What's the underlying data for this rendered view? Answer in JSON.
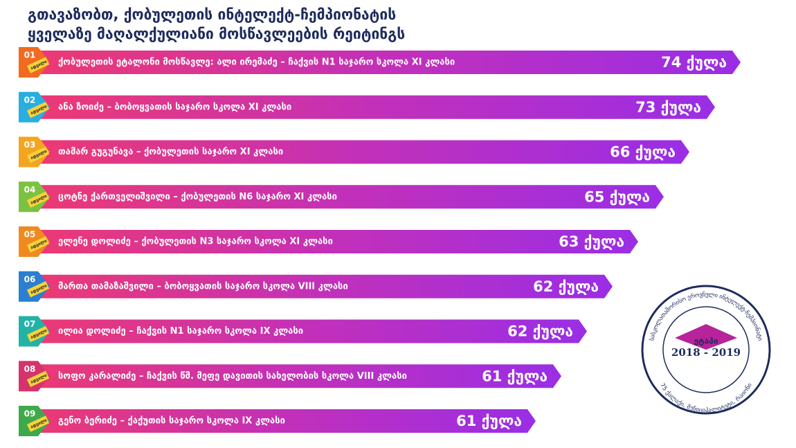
{
  "header": {
    "title_lines": [
      "გთავაზობთ, ქობულეთის ინტელექტ-ჩემპიონატის",
      "ყველაზე მაღალქულიანი მოსწავლეების რეიტინგს"
    ]
  },
  "place_word": "ადგილი",
  "rows": [
    {
      "rank": "01",
      "text": "ქობულეთის ეტალონი მოსწავლე: ალი ირემაძე – ჩაქვის N1 საჯარო სკოლა XI კლასი",
      "score": "74 ქულა"
    },
    {
      "rank": "02",
      "text": "ანა ზოიძე – ბობოყვათის საჯარო სკოლა XI კლასი",
      "score": "73 ქულა"
    },
    {
      "rank": "03",
      "text": "თამარ გუგუნავა – ქობულეთის საჯარო XI კლასი",
      "score": "66 ქულა"
    },
    {
      "rank": "04",
      "text": "ცოტნე ქართველიშვილი – ქობულეთის N6 საჯარო XI კლასი",
      "score": "65 ქულა"
    },
    {
      "rank": "05",
      "text": "ელენე დოლიძე – ქობულეთის N3 საჯარო სკოლა XI კლასი",
      "score": "63 ქულა"
    },
    {
      "rank": "06",
      "text": "მართა თამაზაშვილი – ბობოყვათის საჯარო სკოლა VIII კლასი",
      "score": "62 ქულა"
    },
    {
      "rank": "07",
      "text": "ილია დოლიძე – ჩაქვის N1 საჯარო სკოლა IX კლასი",
      "score": "62 ქულა"
    },
    {
      "rank": "08",
      "text": "სოფო კარალიძე – ჩაქვის წმ. მეფე დავითის სახელობის სკოლა VIII კლასი",
      "score": "61 ქულა"
    },
    {
      "rank": "09",
      "text": "გენო ბერიძე – ქაქუთის საჯარო სკოლა IX კლასი",
      "score": "61 ქულა"
    }
  ],
  "stamp": {
    "stage": "ეტაპი",
    "years": "2018 - 2019",
    "ring_top": "სასკოლათაშორისო ეროვნული ინტელექტ-ჩემპიონატი",
    "ring_bottom": "75 ქალაქი, მუნიციპალიტეტი, რაიონი"
  }
}
